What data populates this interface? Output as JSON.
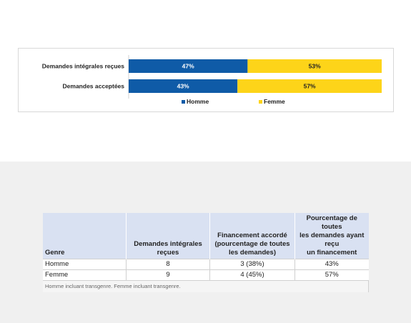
{
  "chart_data": {
    "type": "bar",
    "orientation": "horizontal",
    "stacked": true,
    "percent": true,
    "categories": [
      "Demandes intégrales reçues",
      "Demandes acceptées"
    ],
    "series": [
      {
        "name": "Homme",
        "values": [
          47,
          43
        ],
        "labels": [
          "47%",
          "43%"
        ],
        "color": "#0f5ba7"
      },
      {
        "name": "Femme",
        "values": [
          53,
          57
        ],
        "labels": [
          "53%",
          "57%"
        ],
        "color": "#fdd419"
      }
    ],
    "xlim": [
      0,
      100
    ],
    "legend_position": "bottom"
  },
  "table": {
    "headers": [
      "Genre",
      [
        "Demandes intégrales",
        "reçues"
      ],
      [
        "Financement accordé",
        "(pourcentage de toutes",
        "les demandes)"
      ],
      [
        "Pourcentage de toutes",
        "les demandes ayant reçu",
        "un financement"
      ]
    ],
    "rows": [
      [
        "Homme",
        "8",
        "3 (38%)",
        "43%"
      ],
      [
        "Femme",
        "9",
        "4 (45%)",
        "57%"
      ]
    ],
    "note": "Homme incluant transgenre. Femme incluant transgenre."
  }
}
